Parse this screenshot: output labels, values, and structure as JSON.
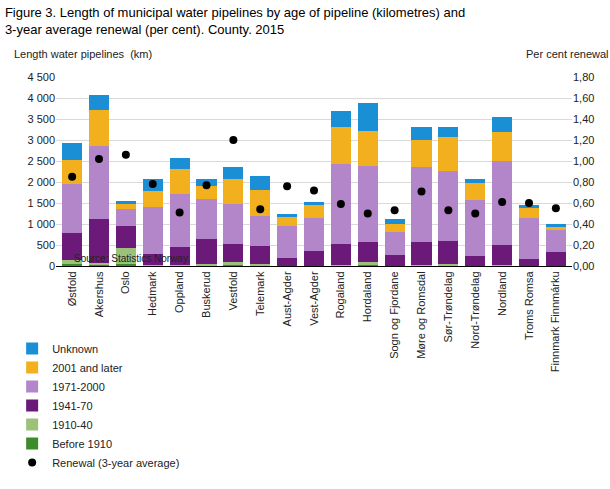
{
  "chart_data": {
    "type": "bar",
    "stacked": true,
    "title": "Figure 3. Length of municipal water pipelines by age of pipeline (kilometres) and\n3-year average renewal (per cent). County. 2015",
    "y_label": "Length water pipelines  (km)",
    "y2_label": "Per cent renewal",
    "source": "Source: Statistics Norway.",
    "grid": true,
    "legend": "bottom left",
    "categories": [
      "Østfold",
      "Akershus",
      "Oslo",
      "Hedmark",
      "Oppland",
      "Buskerud",
      "Vestfold",
      "Telemark",
      "Aust-Agder",
      "Vest-Agder",
      "Rogaland",
      "Hordaland",
      "Sogn og Fjordane",
      "Møre og Romsdal",
      "Sør-Trøndelag",
      "Nord-Trøndelag",
      "Nordland",
      "Troms Romsa",
      "Finnmark Finnmárku"
    ],
    "ylim": [
      0,
      4500
    ],
    "yticks": [
      0,
      500,
      {
        "value": 1000,
        "label": "1 000"
      },
      {
        "value": 1500,
        "label": "1 500"
      },
      {
        "value": 2000,
        "label": "2 000"
      },
      {
        "value": 2500,
        "label": "2 500"
      },
      {
        "value": 3000,
        "label": "3 000"
      },
      {
        "value": 3500,
        "label": "3 500"
      },
      {
        "value": 4000,
        "label": "4 000"
      },
      {
        "value": 4500,
        "label": "4 500"
      }
    ],
    "y2lim": [
      0,
      1.8
    ],
    "y2ticks": [
      {
        "value": 0,
        "label": "0,00"
      },
      {
        "value": 0.2,
        "label": "0,20"
      },
      {
        "value": 0.4,
        "label": "0,40"
      },
      {
        "value": 0.6,
        "label": "0,60"
      },
      {
        "value": 0.8,
        "label": "0,80"
      },
      {
        "value": 1.0,
        "label": "1,00"
      },
      {
        "value": 1.2,
        "label": "1,20"
      },
      {
        "value": 1.4,
        "label": "1,40"
      },
      {
        "value": 1.6,
        "label": "1,60"
      },
      {
        "value": 1.8,
        "label": "1,80"
      }
    ],
    "series": [
      {
        "name": "Before 1910",
        "type": "bar",
        "color": "#3d8c2b",
        "values": [
          50,
          20,
          40,
          0,
          0,
          10,
          20,
          10,
          0,
          0,
          0,
          20,
          0,
          0,
          10,
          0,
          0,
          0,
          0
        ]
      },
      {
        "name": "1910-40",
        "type": "bar",
        "color": "#9cc27a",
        "values": [
          100,
          60,
          390,
          20,
          20,
          30,
          80,
          40,
          10,
          10,
          20,
          80,
          10,
          20,
          30,
          10,
          20,
          10,
          10
        ]
      },
      {
        "name": "1941-70",
        "type": "bar",
        "color": "#6b1a7a",
        "values": [
          630,
          1030,
          530,
          260,
          430,
          600,
          420,
          430,
          190,
          340,
          500,
          480,
          250,
          540,
          560,
          230,
          480,
          150,
          320
        ]
      },
      {
        "name": "1971-2000",
        "type": "bar",
        "color": "#b385c9",
        "values": [
          1180,
          1740,
          390,
          1120,
          1270,
          960,
          950,
          720,
          750,
          800,
          1900,
          1800,
          540,
          1790,
          1670,
          1340,
          2000,
          980,
          530
        ]
      },
      {
        "name": "2001 and later",
        "type": "bar",
        "color": "#f2b01e",
        "values": [
          570,
          870,
          130,
          380,
          580,
          300,
          600,
          600,
          210,
          300,
          880,
          840,
          200,
          650,
          800,
          400,
          680,
          240,
          80
        ]
      },
      {
        "name": "Unknown",
        "type": "bar",
        "color": "#1a8fd6",
        "values": [
          390,
          360,
          70,
          280,
          280,
          160,
          280,
          350,
          70,
          80,
          400,
          650,
          130,
          300,
          230,
          90,
          370,
          70,
          50
        ]
      },
      {
        "name": "Renewal (3-year average)",
        "type": "scatter",
        "marker": "circle",
        "axis": "y2",
        "color": "#000000",
        "values": [
          0.85,
          1.02,
          1.06,
          0.78,
          0.51,
          0.77,
          1.2,
          0.54,
          0.76,
          0.72,
          0.59,
          0.5,
          0.53,
          0.71,
          0.53,
          0.5,
          0.61,
          0.6,
          0.55
        ]
      }
    ]
  }
}
